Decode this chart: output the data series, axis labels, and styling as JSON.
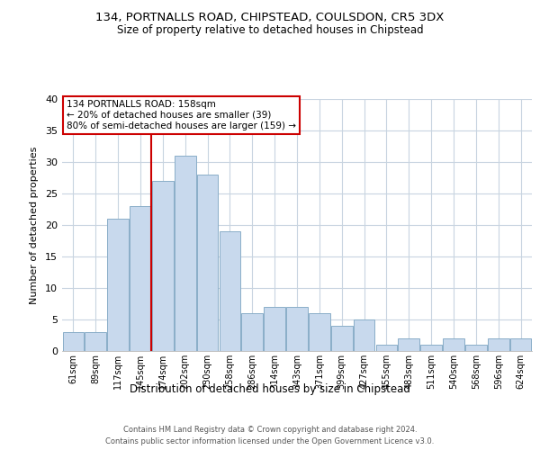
{
  "title1": "134, PORTNALLS ROAD, CHIPSTEAD, COULSDON, CR5 3DX",
  "title2": "Size of property relative to detached houses in Chipstead",
  "xlabel": "Distribution of detached houses by size in Chipstead",
  "ylabel": "Number of detached properties",
  "categories": [
    "61sqm",
    "89sqm",
    "117sqm",
    "145sqm",
    "174sqm",
    "202sqm",
    "230sqm",
    "258sqm",
    "286sqm",
    "314sqm",
    "343sqm",
    "371sqm",
    "399sqm",
    "427sqm",
    "455sqm",
    "483sqm",
    "511sqm",
    "540sqm",
    "568sqm",
    "596sqm",
    "624sqm"
  ],
  "values": [
    3,
    3,
    21,
    23,
    27,
    31,
    28,
    19,
    6,
    7,
    7,
    6,
    4,
    5,
    1,
    2,
    1,
    2,
    1,
    2,
    2
  ],
  "bar_color": "#c8d9ed",
  "bar_edge_color": "#8aaec8",
  "vline_x": 3.5,
  "vline_color": "#cc0000",
  "ylim": [
    0,
    40
  ],
  "yticks": [
    0,
    5,
    10,
    15,
    20,
    25,
    30,
    35,
    40
  ],
  "annotation_title": "134 PORTNALLS ROAD: 158sqm",
  "annotation_line1": "← 20% of detached houses are smaller (39)",
  "annotation_line2": "80% of semi-detached houses are larger (159) →",
  "annotation_box_color": "#ffffff",
  "annotation_box_edge": "#cc0000",
  "footnote1": "Contains HM Land Registry data © Crown copyright and database right 2024.",
  "footnote2": "Contains public sector information licensed under the Open Government Licence v3.0.",
  "background_color": "#ffffff",
  "grid_color": "#c8d4e0"
}
